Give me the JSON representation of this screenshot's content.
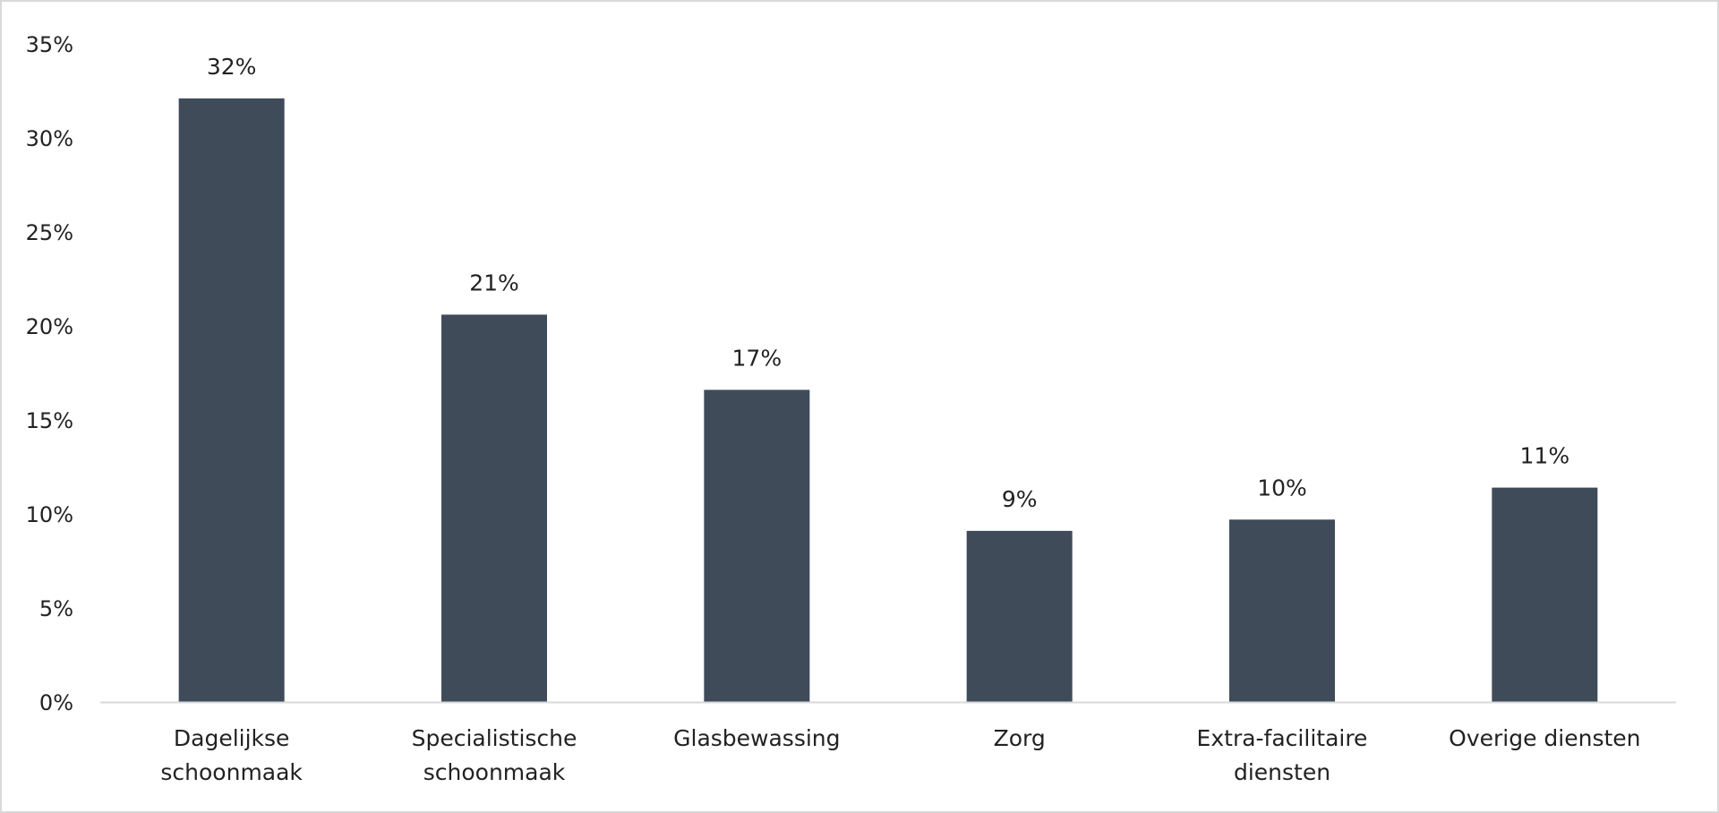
{
  "chart_data": {
    "type": "bar",
    "title": "",
    "xlabel": "",
    "ylabel": "",
    "categories": [
      [
        "Dagelijkse",
        "schoonmaak"
      ],
      [
        "Specialistische",
        "schoonmaak"
      ],
      [
        "Glasbewassing"
      ],
      [
        "Zorg"
      ],
      [
        "Extra-facilitaire",
        "diensten"
      ],
      [
        "Overige diensten"
      ]
    ],
    "values": [
      32.1,
      20.6,
      16.6,
      9.1,
      9.7,
      11.4
    ],
    "data_labels": [
      "32%",
      "21%",
      "17%",
      "9%",
      "10%",
      "11%"
    ],
    "ylim": [
      0,
      35
    ],
    "yticks": [
      0,
      5,
      10,
      15,
      20,
      25,
      30,
      35
    ],
    "ytick_labels": [
      "0%",
      "5%",
      "10%",
      "15%",
      "20%",
      "25%",
      "30%",
      "35%"
    ],
    "grid": false,
    "legend": "none",
    "bar_color": "#404b5a",
    "axis_color": "#d9d9d9"
  }
}
